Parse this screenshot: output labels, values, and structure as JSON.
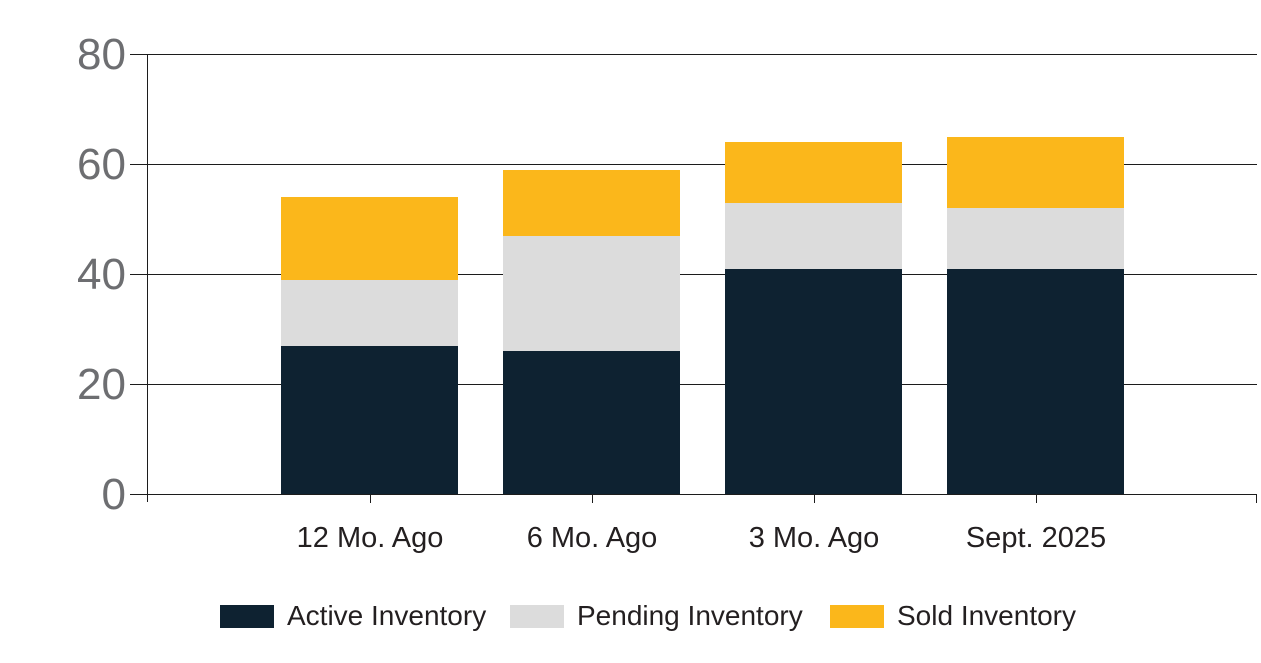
{
  "chart_data": {
    "type": "bar",
    "stacked": true,
    "title": "",
    "xlabel": "",
    "ylabel": "",
    "categories": [
      "12 Mo. Ago",
      "6 Mo. Ago",
      "3 Mo. Ago",
      "Sept. 2025"
    ],
    "series": [
      {
        "name": "Active Inventory",
        "color": "#0E2231",
        "values": [
          27,
          26,
          41,
          41
        ]
      },
      {
        "name": "Pending Inventory",
        "color": "#DCDCDC",
        "values": [
          12,
          21,
          12,
          11
        ]
      },
      {
        "name": "Sold Inventory",
        "color": "#FBB71B",
        "values": [
          15,
          12,
          11,
          13
        ]
      }
    ],
    "stack_totals": [
      54,
      59,
      64,
      65
    ],
    "yticks": [
      0,
      20,
      40,
      60,
      80
    ],
    "ylim": [
      0,
      80
    ],
    "grid": true,
    "legend_position": "bottom",
    "colors": {
      "axis_line": "#1C1C1C",
      "ytick_label": "#6D6E71",
      "xtick_label": "#231F20",
      "background": "#FFFFFF"
    }
  }
}
